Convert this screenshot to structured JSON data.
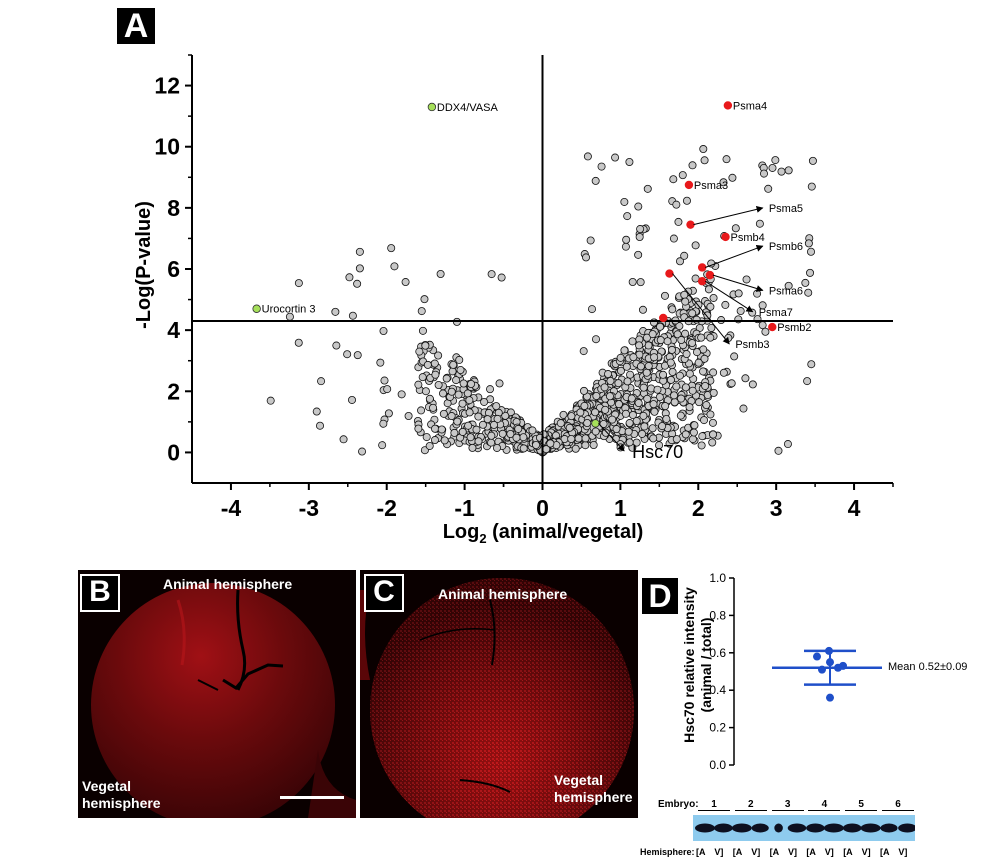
{
  "panels": {
    "A": "A",
    "B": "B",
    "C": "C",
    "D": "D"
  },
  "chart_data": [
    {
      "id": "A",
      "type": "scatter",
      "title": "",
      "xlabel": "Log2 (animal/vegetal)",
      "xlabel_base": "Log",
      "xlabel_sub": "2",
      "xlabel_rest": " (animal/vegetal)",
      "ylabel": "-Log(P-value)",
      "xlim": [
        -4.5,
        4.5
      ],
      "ylim": [
        -1,
        13
      ],
      "xticks": [
        -4,
        -3,
        -2,
        -1,
        0,
        1,
        2,
        3,
        4
      ],
      "yticks": [
        0,
        2,
        4,
        6,
        8,
        10,
        12
      ],
      "threshold_y": 4.3,
      "vertical_line_x": 0,
      "point_color_default": "#c8c8c8",
      "highlight_colors": {
        "proteasome": "#e8191b",
        "other": "#a6e05a"
      },
      "labeled_points": [
        {
          "label": "Psma4",
          "x": 2.38,
          "y": 11.35,
          "color": "#e8191b",
          "arrow": false
        },
        {
          "label": "Psma3",
          "x": 1.88,
          "y": 8.75,
          "color": "#e8191b",
          "arrow": false
        },
        {
          "label": "Psma5",
          "x": 1.9,
          "y": 7.45,
          "color": "#e8191b",
          "arrow": true,
          "label_x": 2.88,
          "label_y": 8.0
        },
        {
          "label": "Psmb4",
          "x": 2.35,
          "y": 7.05,
          "color": "#e8191b",
          "arrow": false
        },
        {
          "label": "Psmb6",
          "x": 2.05,
          "y": 6.05,
          "color": "#e8191b",
          "arrow": true,
          "label_x": 2.88,
          "label_y": 6.75
        },
        {
          "label": "Psma6",
          "x": 2.15,
          "y": 5.8,
          "color": "#e8191b",
          "arrow": true,
          "label_x": 2.88,
          "label_y": 5.3
        },
        {
          "label": "Psma7",
          "x": 2.05,
          "y": 5.6,
          "color": "#e8191b",
          "arrow": true,
          "label_x": 2.75,
          "label_y": 4.6
        },
        {
          "label": "Psmb3",
          "x": 1.63,
          "y": 5.85,
          "color": "#e8191b",
          "arrow": true,
          "label_x": 2.45,
          "label_y": 3.55
        },
        {
          "label": "Psmb2",
          "x": 2.95,
          "y": 4.1,
          "color": "#e8191b",
          "arrow": false
        },
        {
          "label": "",
          "x": 1.55,
          "y": 4.4,
          "color": "#e8191b",
          "arrow": false
        },
        {
          "label": "DDX4/VASA",
          "x": -1.42,
          "y": 11.3,
          "color": "#a6e05a",
          "arrow": false
        },
        {
          "label": "Urocortin 3",
          "x": -3.67,
          "y": 4.7,
          "color": "#a6e05a",
          "arrow": false
        },
        {
          "label": "Hsc70",
          "x": 0.68,
          "y": 0.95,
          "color": "#a6e05a",
          "arrow": true,
          "label_x": 1.1,
          "label_y": 0.05
        }
      ],
      "background_points": "~1500 gray proteins distributed as a volcano: dense V near origin (|x|<1.5, y<4), sparser spread up to x≈3.5, y≈10"
    },
    {
      "id": "D",
      "type": "scatter",
      "ylabel": "Hsc70 relative intensity (animal / total)",
      "ylabel_line1": "Hsc70 relative intensity",
      "ylabel_line2": "(animal / total)",
      "ylim": [
        0.0,
        1.0
      ],
      "yticks": [
        "0.0",
        "0.2",
        "0.4",
        "0.6",
        "0.8",
        "1.0"
      ],
      "points": [
        0.61,
        0.58,
        0.55,
        0.53,
        0.51,
        0.52,
        0.36
      ],
      "mean": 0.52,
      "sd": 0.09,
      "annotation": "Mean 0.52±0.09",
      "color": "#1f4fc9"
    }
  ],
  "micrographs": {
    "B": {
      "top_label": "Animal hemisphere",
      "bottom_label_line1": "Vegetal",
      "bottom_label_line2": "hemisphere",
      "has_scale_bar": true
    },
    "C": {
      "top_label": "Animal hemisphere",
      "bottom_label_line1": "Vegetal",
      "bottom_label_line2": "hemisphere"
    }
  },
  "western_blot": {
    "embryo_label": "Embryo:",
    "embryos": [
      "1",
      "2",
      "3",
      "4",
      "5",
      "6"
    ],
    "hemisphere_label": "Hemisphere:",
    "lane_labels": [
      "[A",
      "V]",
      "[A",
      "V]",
      "[A",
      "V]",
      "[A",
      "V]",
      "[A",
      "V]",
      "[A",
      "V]"
    ],
    "membrane_color": "#8ecbee"
  }
}
